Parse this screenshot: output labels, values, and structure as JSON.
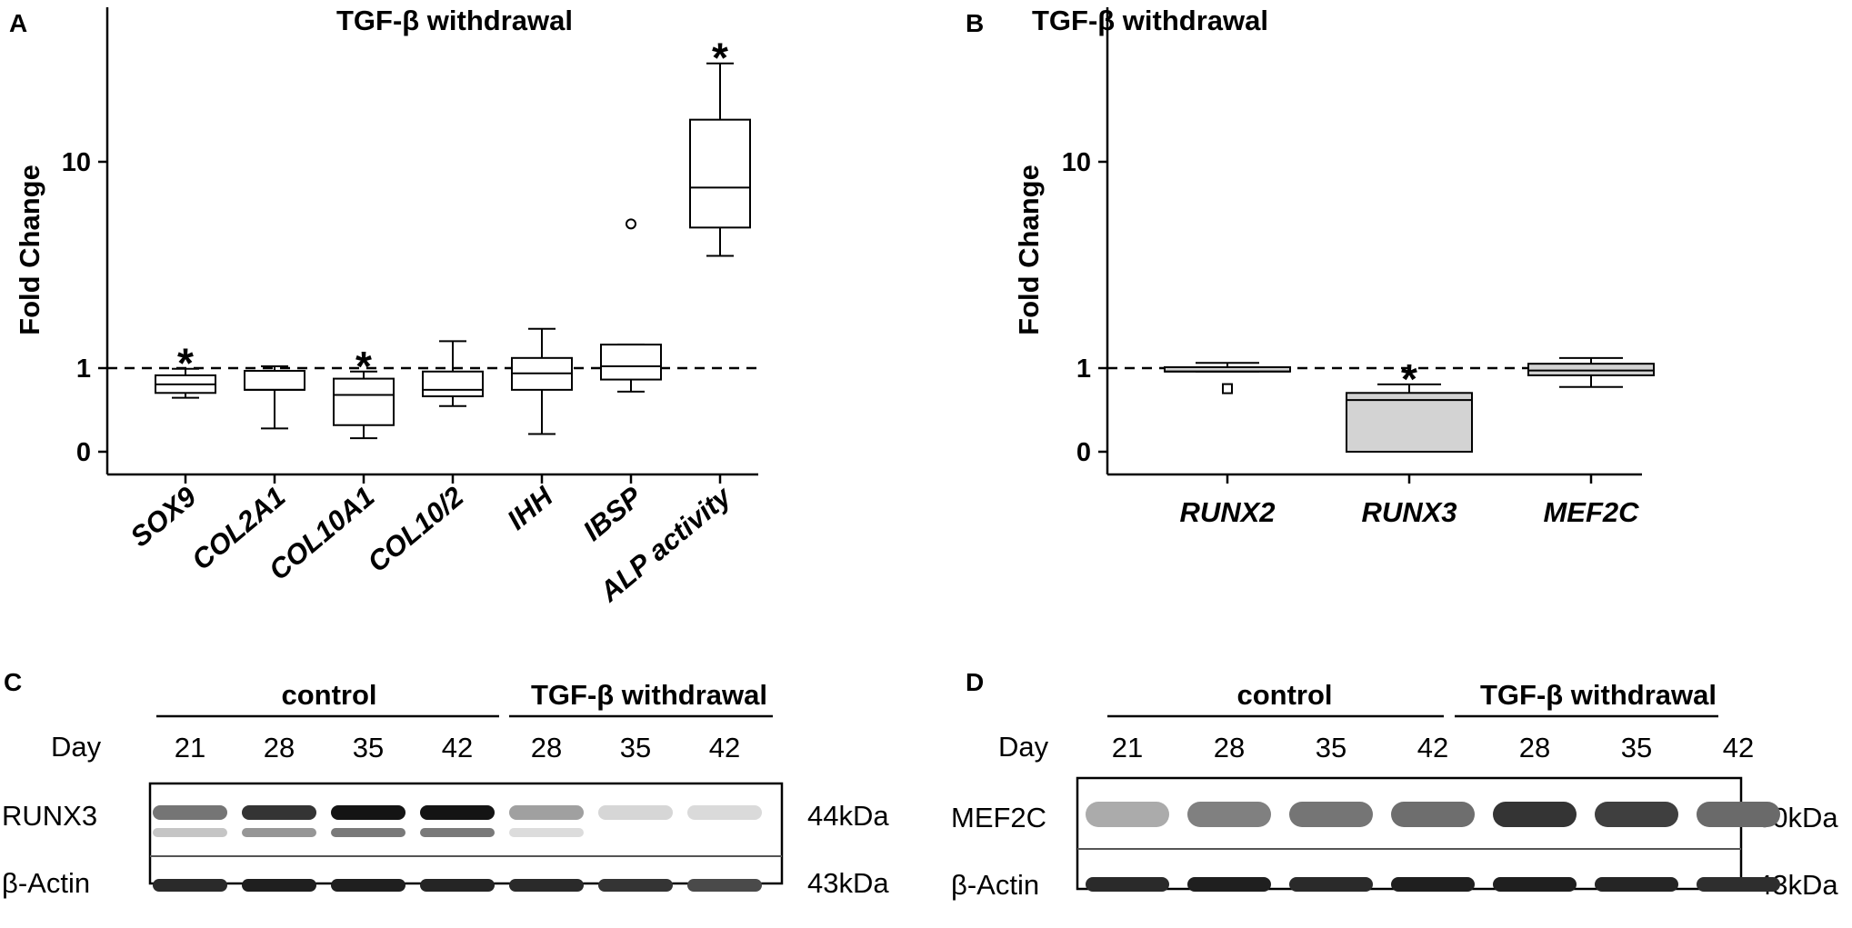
{
  "panels": {
    "a": {
      "letter": "A"
    },
    "b": {
      "letter": "B"
    },
    "c": {
      "letter": "C"
    },
    "d": {
      "letter": "D"
    }
  },
  "chart_data": [
    {
      "type": "box",
      "title": "TGF-β withdrawal",
      "xlabel": "",
      "ylabel": "Fold Change",
      "yscale": "log-like",
      "yticks": [
        "0",
        "1",
        "10"
      ],
      "reference_line": 1,
      "categories": [
        "SOX9",
        "COL2A1",
        "COL10A1",
        "COL10/2",
        "IHH",
        "IBSP",
        "ALP activity"
      ],
      "boxes": [
        {
          "label": "SOX9",
          "min": 0.38,
          "q1": 0.45,
          "median": 0.6,
          "q3": 0.8,
          "max": 0.98,
          "significant": true
        },
        {
          "label": "COL2A1",
          "min": 0.1,
          "q1": 0.5,
          "median": 0.5,
          "q3": 0.92,
          "max": 1.02
        },
        {
          "label": "COL10A1",
          "min": 0.05,
          "q1": 0.12,
          "median": 0.42,
          "q3": 0.72,
          "max": 0.9,
          "significant": true
        },
        {
          "label": "COL10/2",
          "min": 0.28,
          "q1": 0.4,
          "median": 0.5,
          "q3": 0.9,
          "max": 1.35
        },
        {
          "label": "IHH",
          "min": 0.07,
          "q1": 0.5,
          "median": 0.85,
          "q3": 1.12,
          "max": 1.55
        },
        {
          "label": "IBSP",
          "min": 0.47,
          "q1": 0.7,
          "median": 1.02,
          "q3": 1.3,
          "max": 1.3,
          "outliers": [
            5.0
          ]
        },
        {
          "label": "ALP activity",
          "min": 3.5,
          "q1": 4.8,
          "median": 7.5,
          "q3": 16,
          "max": 30,
          "significant": true
        }
      ],
      "fill": "#ffffff"
    },
    {
      "type": "box",
      "title": "TGF-β withdrawal",
      "xlabel": "",
      "ylabel": "Fold Change",
      "yscale": "log-like",
      "yticks": [
        "0",
        "1",
        "10"
      ],
      "reference_line": 1,
      "categories": [
        "RUNX2",
        "RUNX3",
        "MEF2C"
      ],
      "boxes": [
        {
          "label": "RUNX2",
          "min": 0.9,
          "q1": 0.9,
          "median": 0.9,
          "q3": 1.01,
          "max": 1.06,
          "outliers": [
            0.52
          ]
        },
        {
          "label": "RUNX3",
          "min": 0.0,
          "q1": 0.0,
          "median": 0.35,
          "q3": 0.45,
          "max": 0.6,
          "significant": true
        },
        {
          "label": "MEF2C",
          "min": 0.55,
          "q1": 0.8,
          "median": 0.93,
          "q3": 1.05,
          "max": 1.12
        }
      ],
      "fill": "#d3d3d3"
    }
  ],
  "blots": {
    "c": {
      "group_control": "control",
      "group_treatment": "TGF-β withdrawal",
      "day_label": "Day",
      "days": [
        "21",
        "28",
        "35",
        "42",
        "28",
        "35",
        "42"
      ],
      "rows": [
        {
          "protein": "RUNX3",
          "size": "44kDa",
          "intensity": [
            0.55,
            0.85,
            1.0,
            1.0,
            0.35,
            0.1,
            0.08
          ],
          "lower_intensity": [
            0.2,
            0.45,
            0.6,
            0.6,
            0.08,
            0.0,
            0.0
          ]
        },
        {
          "protein": "β-Actin",
          "size": "43kDa",
          "intensity": [
            0.9,
            0.95,
            0.95,
            0.92,
            0.9,
            0.85,
            0.75
          ]
        }
      ]
    },
    "d": {
      "group_control": "control",
      "group_treatment": "TGF-β withdrawal",
      "day_label": "Day",
      "days": [
        "21",
        "28",
        "35",
        "42",
        "28",
        "35",
        "42"
      ],
      "rows": [
        {
          "protein": "MEF2C",
          "size": "60kDa",
          "intensity": [
            0.3,
            0.5,
            0.55,
            0.58,
            0.85,
            0.8,
            0.6
          ]
        },
        {
          "protein": "β-Actin",
          "size": "43kDa",
          "intensity": [
            0.9,
            0.95,
            0.9,
            0.95,
            0.95,
            0.92,
            0.88
          ]
        }
      ]
    }
  },
  "colors": {
    "box_white": "#ffffff",
    "box_grey": "#d3d3d3",
    "line": "#000000"
  },
  "significance_marker": "*"
}
